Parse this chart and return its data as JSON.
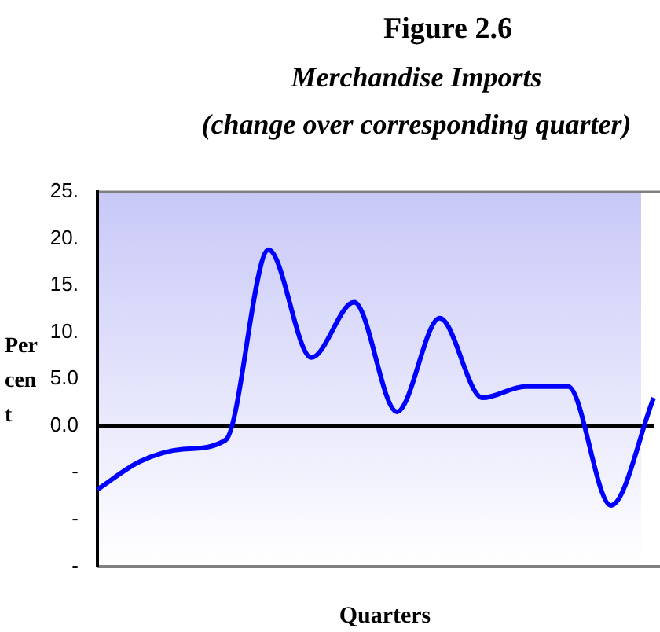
{
  "chart_data": {
    "type": "line",
    "title": "Figure 2.6",
    "subtitle": "Merchandise Imports\n(change over corresponding quarter)",
    "xlabel": "Quarters",
    "ylabel": "Per cen t",
    "categories": [
      null,
      null,
      null,
      null,
      null,
      null,
      null,
      null,
      null,
      null,
      null,
      null,
      null,
      null
    ],
    "series": [
      {
        "color": "#0000ff",
        "values": [
          -6.8,
          -3.8,
          -2.5,
          -1.5,
          18.8,
          7.3,
          13.2,
          1.5,
          11.5,
          3,
          4.2,
          4.2,
          -8.5,
          3
        ]
      }
    ],
    "ylim": [
      -15,
      25
    ],
    "yticks": [
      {
        "value": 25,
        "label": "25."
      },
      {
        "value": 20,
        "label": "20."
      },
      {
        "value": 15,
        "label": "15."
      },
      {
        "value": 10,
        "label": "10."
      },
      {
        "value": 5,
        "label": "5.0"
      },
      {
        "value": 0,
        "label": "0.0"
      },
      {
        "value": -5,
        "label": "-"
      },
      {
        "value": -10,
        "label": "-"
      },
      {
        "value": -15,
        "label": "-"
      }
    ],
    "marker": "none",
    "tick_labels": "y",
    "legend": false
  }
}
